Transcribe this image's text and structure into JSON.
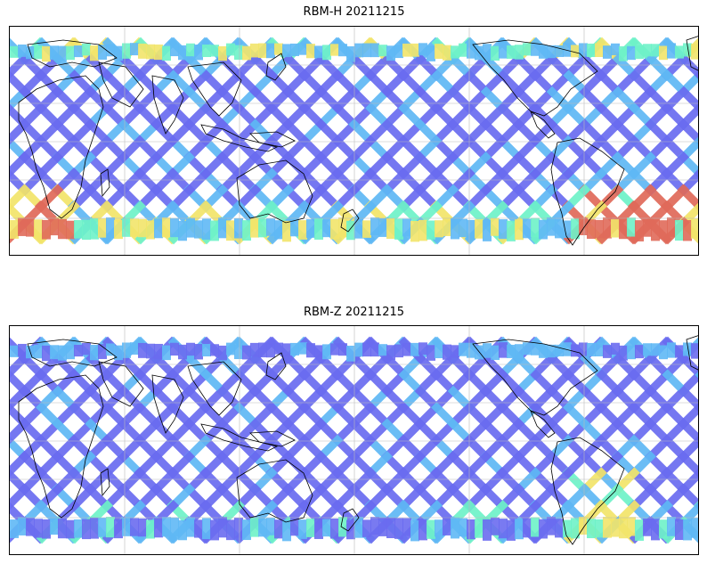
{
  "panels": [
    {
      "title": "RBM-H 20211215",
      "variant": "H"
    },
    {
      "title": "RBM-Z 20211215",
      "variant": "Z"
    }
  ],
  "colors": {
    "track_blue": "#6a6cf0",
    "track_cyan": "#5fb8f5",
    "track_green": "#6ef2c8",
    "track_yellow": "#f2e46a",
    "track_red": "#e06a5a",
    "coastline": "#000000",
    "gridline": "#bbbbbb"
  }
}
